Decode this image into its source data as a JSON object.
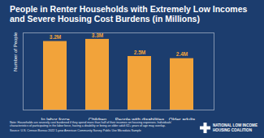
{
  "chart_data": {
    "type": "bar",
    "title": "People in Renter Households with Extremely Low Incomes and Severe Housing Cost Burdens (in Millions)",
    "categories": [
      "In labor force",
      "Children",
      "People with disabilities",
      "Older adults"
    ],
    "values": [
      3.2,
      3.3,
      2.5,
      2.4
    ],
    "value_labels": [
      "3.2M",
      "3.3M",
      "2.5M",
      "2.4M"
    ],
    "data_labels": true,
    "color": "#f2a33a",
    "y_label": "Number of People",
    "ylim": [
      0,
      3.6
    ],
    "yticks": [],
    "tick_labels": "x",
    "grid": false,
    "note": "Note: Households are severely cost burdened if they spend more than half of their incomes on housing expenses. Individuals' characteristics of participating in the labor force, having a disability or being an older adult 62+ years of age may overlap.",
    "source": "Source: U.S. Census Bureau 2022 1-year American Community Survey Public Use Microdata Sample",
    "logo": [
      "NATIONAL LOW INCOME",
      "HOUSING COALITION"
    ]
  }
}
